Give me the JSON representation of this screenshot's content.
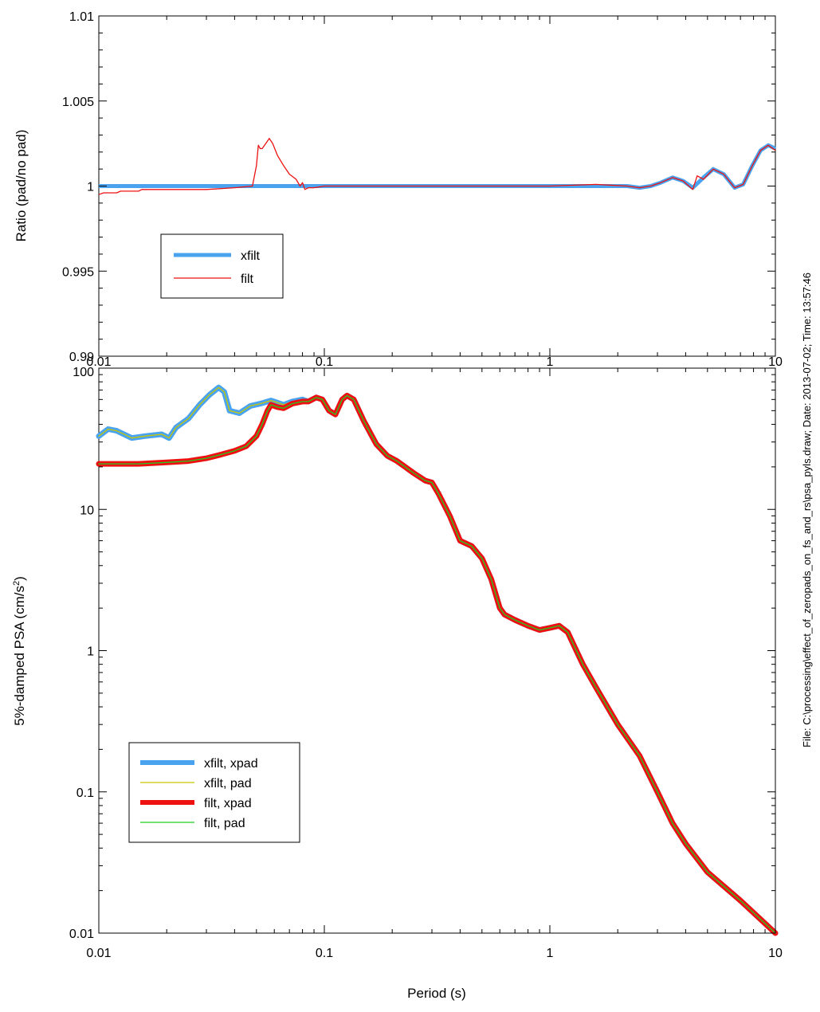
{
  "colors": {
    "xfilt_xpad": "#4aa3ee",
    "xfilt_pad": "#c8c800",
    "filt_xpad": "#ee1111",
    "filt_pad": "#22cc22",
    "xfilt": "#4aa3ee",
    "filt": "#ee1111",
    "axis": "#000000"
  },
  "side_note": "File: C:\\processing\\effect_of_zeropads_on_fs_and_rs\\psa_pyls.draw; Date: 2013-07-02; Time: 13:57:46",
  "chart_data": [
    {
      "type": "line",
      "xscale": "log",
      "xlim": [
        0.01,
        10
      ],
      "ylim": [
        0.99,
        1.01
      ],
      "xlabel": "",
      "ylabel": "Ratio (pad/no pad)",
      "xticks": [
        "0.01",
        "0.1",
        "1",
        "10"
      ],
      "yticks": [
        "0.99",
        "0.995",
        "1",
        "1.005",
        "1.01"
      ],
      "grid": false,
      "legend_position": "lower-left",
      "series": [
        {
          "name": "xfilt",
          "color_key": "xfilt",
          "x": [
            0.01,
            0.07,
            0.09,
            0.2,
            1,
            1.6,
            2.2,
            2.5,
            2.8,
            3.1,
            3.5,
            3.9,
            4.3,
            4.8,
            5.3,
            5.9,
            6.6,
            7.2,
            7.9,
            8.6,
            9.3,
            10
          ],
          "y": [
            1,
            1,
            1,
            1,
            1,
            1,
            1,
            0.9999,
            1,
            1.0002,
            1.0005,
            1.0003,
            0.9999,
            1.0005,
            1.001,
            1.0007,
            0.9999,
            1.0001,
            1.0012,
            1.0021,
            1.0024,
            1.0022
          ]
        },
        {
          "name": "filt",
          "color_key": "filt",
          "x": [
            0.01,
            0.0105,
            0.011,
            0.012,
            0.0125,
            0.013,
            0.015,
            0.0155,
            0.02,
            0.03,
            0.04,
            0.048,
            0.05,
            0.051,
            0.052,
            0.053,
            0.055,
            0.057,
            0.059,
            0.062,
            0.066,
            0.07,
            0.075,
            0.078,
            0.08,
            0.082,
            0.085,
            0.09,
            0.1,
            0.15,
            0.2,
            0.3,
            0.5,
            0.7,
            1,
            1.6,
            2.2,
            2.5,
            2.8,
            3.1,
            3.5,
            3.9,
            4.3,
            4.5,
            4.8,
            5.3,
            5.9,
            6.6,
            7.2,
            7.9,
            8.6,
            9.3,
            10
          ],
          "y": [
            0.9995,
            0.9996,
            0.9996,
            0.9996,
            0.9997,
            0.9997,
            0.9997,
            0.9998,
            0.9998,
            0.9998,
            0.9999,
            1,
            1.0012,
            1.0024,
            1.0022,
            1.0022,
            1.0025,
            1.0028,
            1.0025,
            1.0018,
            1.0012,
            1.0007,
            1.0004,
            1.0,
            1.0002,
            0.9998,
            0.9999,
            0.9999,
            1,
            1,
            1,
            1,
            1,
            1,
            1,
            1.0001,
            1,
            0.9999,
            1,
            1.0002,
            1.0005,
            1.0003,
            0.9998,
            1.0006,
            1.0004,
            1.001,
            1.0007,
            0.9999,
            1.0001,
            1.0012,
            1.0021,
            1.0024,
            1.0021
          ]
        }
      ]
    },
    {
      "type": "line",
      "xscale": "log",
      "yscale": "log",
      "xlim": [
        0.01,
        10
      ],
      "ylim": [
        0.01,
        100
      ],
      "xlabel": "Period (s)",
      "ylabel_main": "5%-damped PSA (cm/s",
      "ylabel_sup": "2",
      "ylabel_end": ")",
      "xticks": [
        "0.01",
        "0.1",
        "1",
        "10"
      ],
      "yticks": [
        "0.01",
        "0.1",
        "1",
        "10",
        "100"
      ],
      "grid": false,
      "legend_position": "lower-left",
      "series": [
        {
          "name": "xfilt, xpad",
          "color_key": "xfilt_xpad",
          "x": [
            0.01,
            0.011,
            0.012,
            0.014,
            0.016,
            0.019,
            0.0205,
            0.022,
            0.025,
            0.028,
            0.031,
            0.034,
            0.036,
            0.038,
            0.042,
            0.047,
            0.052,
            0.058,
            0.062,
            0.066,
            0.072,
            0.08,
            0.085,
            0.092,
            0.098,
            0.105,
            0.112,
            0.12,
            0.126,
            0.135,
            0.15,
            0.17,
            0.19,
            0.21,
            0.25,
            0.28,
            0.3,
            0.32,
            0.36,
            0.4,
            0.45,
            0.5,
            0.55,
            0.6,
            0.63,
            0.7,
            0.8,
            0.9,
            1,
            1.1,
            1.2,
            1.4,
            1.6,
            1.8,
            2,
            2.5,
            3,
            3.5,
            4,
            5,
            7,
            10
          ],
          "y": [
            33,
            37,
            36,
            32,
            33,
            34,
            32,
            38,
            44,
            55,
            65,
            73,
            68,
            50,
            48,
            54,
            56,
            59,
            57,
            55,
            58,
            60,
            58,
            62,
            60,
            50,
            47,
            60,
            64,
            60,
            42,
            29,
            24,
            22,
            18,
            16,
            15.5,
            13,
            9,
            6,
            5.5,
            4.5,
            3.2,
            2,
            1.8,
            1.65,
            1.5,
            1.4,
            1.45,
            1.5,
            1.35,
            0.8,
            0.55,
            0.4,
            0.3,
            0.18,
            0.1,
            0.06,
            0.043,
            0.027,
            0.017,
            0.01
          ]
        },
        {
          "name": "xfilt, pad",
          "color_key": "xfilt_pad",
          "x": [
            0.01,
            0.011,
            0.012,
            0.014,
            0.016,
            0.019,
            0.0205,
            0.022,
            0.025,
            0.028,
            0.031,
            0.034,
            0.036,
            0.038,
            0.042,
            0.047,
            0.052,
            0.058,
            0.062,
            0.066,
            0.072,
            0.08,
            0.085,
            0.092,
            0.098,
            0.105,
            0.112,
            0.12,
            0.126,
            0.135,
            0.15,
            0.17,
            0.19,
            0.21,
            0.25,
            0.28,
            0.3,
            0.32,
            0.36,
            0.4,
            0.45,
            0.5,
            0.55,
            0.6,
            0.63,
            0.7,
            0.8,
            0.9,
            1,
            1.1,
            1.2,
            1.4,
            1.6,
            1.8,
            2,
            2.5,
            3,
            3.5,
            4,
            5,
            7,
            10
          ],
          "y": [
            33,
            37,
            36,
            32,
            33,
            34,
            32,
            38,
            44,
            55,
            65,
            73,
            68,
            50,
            48,
            54,
            56,
            59,
            57,
            55,
            58,
            60,
            58,
            62,
            60,
            50,
            47,
            60,
            64,
            60,
            42,
            29,
            24,
            22,
            18,
            16,
            15.5,
            13,
            9,
            6,
            5.5,
            4.5,
            3.2,
            2,
            1.8,
            1.65,
            1.5,
            1.4,
            1.45,
            1.5,
            1.35,
            0.8,
            0.55,
            0.4,
            0.3,
            0.18,
            0.1,
            0.06,
            0.043,
            0.027,
            0.017,
            0.01
          ]
        },
        {
          "name": "filt, xpad",
          "color_key": "filt_xpad",
          "x": [
            0.01,
            0.015,
            0.02,
            0.025,
            0.03,
            0.035,
            0.04,
            0.045,
            0.05,
            0.053,
            0.056,
            0.058,
            0.062,
            0.066,
            0.072,
            0.08,
            0.085,
            0.092,
            0.098,
            0.105,
            0.112,
            0.12,
            0.126,
            0.135,
            0.15,
            0.17,
            0.19,
            0.21,
            0.25,
            0.28,
            0.3,
            0.32,
            0.36,
            0.4,
            0.45,
            0.5,
            0.55,
            0.6,
            0.63,
            0.7,
            0.8,
            0.9,
            1,
            1.1,
            1.2,
            1.4,
            1.6,
            1.8,
            2,
            2.5,
            3,
            3.5,
            4,
            5,
            7,
            10
          ],
          "y": [
            21,
            21,
            21.5,
            22,
            23,
            24.5,
            26,
            28,
            33,
            40,
            50,
            55,
            53,
            52,
            56,
            58,
            58,
            62,
            60,
            50,
            47,
            60,
            64,
            60,
            42,
            29,
            24,
            22,
            18,
            16,
            15.5,
            13,
            9,
            6,
            5.5,
            4.5,
            3.2,
            2,
            1.8,
            1.65,
            1.5,
            1.4,
            1.45,
            1.5,
            1.35,
            0.8,
            0.55,
            0.4,
            0.3,
            0.18,
            0.1,
            0.06,
            0.043,
            0.027,
            0.017,
            0.01
          ]
        },
        {
          "name": "filt, pad",
          "color_key": "filt_pad",
          "x": [
            0.01,
            0.015,
            0.02,
            0.025,
            0.03,
            0.035,
            0.04,
            0.045,
            0.05,
            0.053,
            0.056,
            0.058,
            0.062,
            0.066,
            0.072,
            0.08,
            0.085,
            0.092,
            0.098,
            0.105,
            0.112,
            0.12,
            0.126,
            0.135,
            0.15,
            0.17,
            0.19,
            0.21,
            0.25,
            0.28,
            0.3,
            0.32,
            0.36,
            0.4,
            0.45,
            0.5,
            0.55,
            0.6,
            0.63,
            0.7,
            0.8,
            0.9,
            1,
            1.1,
            1.2,
            1.4,
            1.6,
            1.8,
            2,
            2.5,
            3,
            3.5,
            4,
            5,
            7,
            10
          ],
          "y": [
            21,
            21,
            21.5,
            22,
            23,
            24.5,
            26,
            28,
            33,
            40,
            50,
            55,
            53,
            52,
            56,
            58,
            58,
            62,
            60,
            50,
            47,
            60,
            64,
            60,
            42,
            29,
            24,
            22,
            18,
            16,
            15.5,
            13,
            9,
            6,
            5.5,
            4.5,
            3.2,
            2,
            1.8,
            1.65,
            1.5,
            1.4,
            1.45,
            1.5,
            1.35,
            0.8,
            0.55,
            0.4,
            0.3,
            0.18,
            0.1,
            0.06,
            0.043,
            0.027,
            0.017,
            0.01
          ]
        }
      ]
    }
  ]
}
